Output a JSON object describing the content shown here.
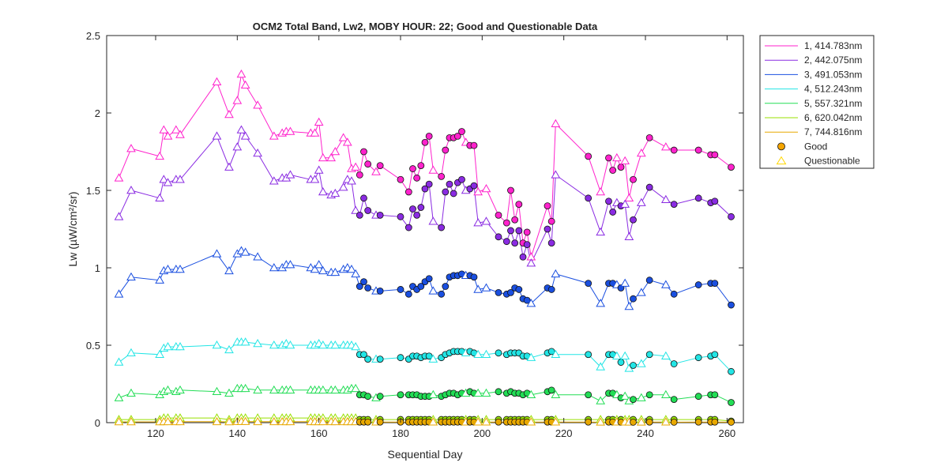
{
  "chart_data": {
    "type": "line",
    "title": "OCM2 Total Band,  Lw2, MOBY HOUR: 22;  Good and Questionable Data",
    "xlabel": "Sequential Day",
    "ylabel": "Lw (µW/cm²/sr)",
    "xlim": [
      108,
      264
    ],
    "ylim": [
      0,
      2.5
    ],
    "xticks": [
      120,
      140,
      160,
      180,
      200,
      220,
      240,
      260
    ],
    "yticks": [
      0,
      0.5,
      1,
      1.5,
      2,
      2.5
    ],
    "ytick_labels": [
      "0",
      "0.5",
      "1",
      "1.5",
      "2",
      "2.5"
    ],
    "grid": false,
    "legend_position": "outside-top-right",
    "x": [
      111,
      114,
      121,
      122,
      123,
      125,
      126,
      135,
      138,
      140,
      141,
      142,
      145,
      149,
      151,
      152,
      153,
      158,
      159,
      160,
      161,
      163,
      164,
      166,
      167,
      168,
      169,
      170,
      171,
      172,
      174,
      175,
      180,
      182,
      183,
      184,
      185,
      186,
      187,
      188,
      190,
      191,
      192,
      193,
      194,
      195,
      196,
      197,
      198,
      199,
      201,
      204,
      206,
      207,
      208,
      209,
      210,
      211,
      212,
      216,
      217,
      218,
      226,
      229,
      231,
      232,
      233,
      234,
      235,
      236,
      237,
      239,
      241,
      245,
      247,
      253,
      256,
      257,
      261
    ],
    "quality": [
      "Q",
      "Q",
      "Q",
      "Q",
      "Q",
      "Q",
      "Q",
      "Q",
      "Q",
      "Q",
      "Q",
      "Q",
      "Q",
      "Q",
      "Q",
      "Q",
      "Q",
      "Q",
      "Q",
      "Q",
      "Q",
      "Q",
      "Q",
      "Q",
      "Q",
      "Q",
      "Q",
      "G",
      "G",
      "G",
      "Q",
      "G",
      "G",
      "G",
      "G",
      "G",
      "G",
      "G",
      "G",
      "Q",
      "G",
      "G",
      "G",
      "G",
      "G",
      "G",
      "Q",
      "G",
      "G",
      "Q",
      "Q",
      "G",
      "G",
      "G",
      "G",
      "G",
      "G",
      "G",
      "Q",
      "G",
      "G",
      "Q",
      "G",
      "Q",
      "G",
      "G",
      "Q",
      "G",
      "Q",
      "Q",
      "G",
      "Q",
      "G",
      "Q",
      "G",
      "G",
      "G",
      "G",
      "G"
    ],
    "series": [
      {
        "name": "1, 414.783nm",
        "color": "#ff22cc",
        "values": [
          1.58,
          1.77,
          1.72,
          1.89,
          1.85,
          1.89,
          1.86,
          2.2,
          1.99,
          2.08,
          2.25,
          2.18,
          2.05,
          1.85,
          1.87,
          1.88,
          1.88,
          1.87,
          1.87,
          1.94,
          1.71,
          1.71,
          1.75,
          1.84,
          1.81,
          1.64,
          1.65,
          1.6,
          1.75,
          1.67,
          1.62,
          1.66,
          1.57,
          1.49,
          1.64,
          1.58,
          1.66,
          1.81,
          1.85,
          1.63,
          1.59,
          1.76,
          1.84,
          1.84,
          1.85,
          1.88,
          1.81,
          1.79,
          1.79,
          1.49,
          1.51,
          1.34,
          1.29,
          1.5,
          1.31,
          1.41,
          1.16,
          1.23,
          1.07,
          1.4,
          1.3,
          1.93,
          1.72,
          1.49,
          1.71,
          1.63,
          1.71,
          1.65,
          1.69,
          1.45,
          1.57,
          1.74,
          1.84,
          1.78,
          1.76,
          1.76,
          1.73,
          1.73,
          1.65
        ]
      },
      {
        "name": "2, 442.075nm",
        "color": "#8a2be2",
        "values": [
          1.33,
          1.5,
          1.45,
          1.57,
          1.55,
          1.57,
          1.57,
          1.85,
          1.65,
          1.78,
          1.89,
          1.85,
          1.74,
          1.56,
          1.58,
          1.58,
          1.6,
          1.57,
          1.57,
          1.63,
          1.49,
          1.47,
          1.48,
          1.52,
          1.57,
          1.56,
          1.37,
          1.34,
          1.45,
          1.37,
          1.34,
          1.34,
          1.33,
          1.26,
          1.38,
          1.34,
          1.39,
          1.51,
          1.54,
          1.3,
          1.26,
          1.49,
          1.54,
          1.48,
          1.55,
          1.57,
          1.5,
          1.51,
          1.53,
          1.29,
          1.3,
          1.2,
          1.17,
          1.24,
          1.16,
          1.24,
          1.07,
          1.15,
          1.03,
          1.25,
          1.16,
          1.6,
          1.45,
          1.23,
          1.43,
          1.36,
          1.42,
          1.4,
          1.41,
          1.2,
          1.31,
          1.42,
          1.52,
          1.44,
          1.41,
          1.45,
          1.42,
          1.43,
          1.33
        ]
      },
      {
        "name": "3, 491.053nm",
        "color": "#1a4fe0",
        "values": [
          0.83,
          0.94,
          0.92,
          0.98,
          0.99,
          0.99,
          0.99,
          1.09,
          0.98,
          1.09,
          1.11,
          1.1,
          1.07,
          1.0,
          1.0,
          1.02,
          1.02,
          1.0,
          0.99,
          1.02,
          0.98,
          0.97,
          0.97,
          0.99,
          1.0,
          0.99,
          0.96,
          0.88,
          0.91,
          0.87,
          0.85,
          0.85,
          0.86,
          0.83,
          0.88,
          0.86,
          0.88,
          0.91,
          0.93,
          0.85,
          0.83,
          0.88,
          0.94,
          0.95,
          0.95,
          0.96,
          0.95,
          0.95,
          0.94,
          0.86,
          0.87,
          0.84,
          0.83,
          0.84,
          0.87,
          0.86,
          0.8,
          0.79,
          0.77,
          0.87,
          0.86,
          0.96,
          0.9,
          0.77,
          0.9,
          0.9,
          0.89,
          0.87,
          0.9,
          0.75,
          0.8,
          0.84,
          0.92,
          0.89,
          0.83,
          0.89,
          0.9,
          0.9,
          0.76
        ]
      },
      {
        "name": "4, 512.243nm",
        "color": "#22e5e5",
        "values": [
          0.39,
          0.45,
          0.44,
          0.48,
          0.49,
          0.49,
          0.49,
          0.5,
          0.47,
          0.52,
          0.52,
          0.52,
          0.51,
          0.5,
          0.5,
          0.51,
          0.5,
          0.5,
          0.5,
          0.51,
          0.5,
          0.5,
          0.5,
          0.5,
          0.5,
          0.5,
          0.49,
          0.44,
          0.44,
          0.41,
          0.41,
          0.41,
          0.42,
          0.41,
          0.43,
          0.43,
          0.42,
          0.43,
          0.43,
          0.41,
          0.42,
          0.44,
          0.45,
          0.46,
          0.46,
          0.46,
          0.45,
          0.46,
          0.45,
          0.44,
          0.44,
          0.45,
          0.44,
          0.45,
          0.45,
          0.45,
          0.43,
          0.43,
          0.42,
          0.45,
          0.46,
          0.44,
          0.44,
          0.36,
          0.44,
          0.44,
          0.43,
          0.39,
          0.43,
          0.35,
          0.37,
          0.38,
          0.44,
          0.43,
          0.38,
          0.42,
          0.43,
          0.44,
          0.33
        ]
      },
      {
        "name": "5, 557.321nm",
        "color": "#22dd55",
        "values": [
          0.16,
          0.19,
          0.18,
          0.2,
          0.21,
          0.2,
          0.21,
          0.2,
          0.19,
          0.22,
          0.22,
          0.22,
          0.21,
          0.21,
          0.21,
          0.21,
          0.21,
          0.21,
          0.21,
          0.21,
          0.21,
          0.21,
          0.21,
          0.21,
          0.21,
          0.22,
          0.22,
          0.18,
          0.18,
          0.17,
          0.16,
          0.17,
          0.18,
          0.18,
          0.18,
          0.18,
          0.17,
          0.17,
          0.17,
          0.18,
          0.17,
          0.18,
          0.19,
          0.19,
          0.18,
          0.19,
          0.19,
          0.2,
          0.19,
          0.19,
          0.19,
          0.2,
          0.19,
          0.2,
          0.19,
          0.19,
          0.18,
          0.19,
          0.18,
          0.2,
          0.21,
          0.18,
          0.18,
          0.14,
          0.19,
          0.19,
          0.18,
          0.16,
          0.17,
          0.14,
          0.15,
          0.16,
          0.18,
          0.18,
          0.15,
          0.17,
          0.18,
          0.18,
          0.13
        ]
      },
      {
        "name": "6, 620.042nm",
        "color": "#99e000",
        "values": [
          0.02,
          0.02,
          0.02,
          0.03,
          0.03,
          0.03,
          0.03,
          0.03,
          0.02,
          0.03,
          0.03,
          0.03,
          0.03,
          0.03,
          0.03,
          0.03,
          0.03,
          0.03,
          0.03,
          0.03,
          0.03,
          0.03,
          0.03,
          0.03,
          0.03,
          0.03,
          0.03,
          0.02,
          0.02,
          0.02,
          0.02,
          0.02,
          0.02,
          0.02,
          0.02,
          0.02,
          0.02,
          0.02,
          0.02,
          0.02,
          0.02,
          0.02,
          0.02,
          0.02,
          0.02,
          0.02,
          0.02,
          0.02,
          0.02,
          0.02,
          0.02,
          0.02,
          0.02,
          0.02,
          0.02,
          0.02,
          0.02,
          0.02,
          0.02,
          0.02,
          0.02,
          0.02,
          0.02,
          0.02,
          0.02,
          0.02,
          0.02,
          0.02,
          0.02,
          0.02,
          0.02,
          0.02,
          0.02,
          0.02,
          0.02,
          0.02,
          0.02,
          0.02,
          0.01
        ]
      },
      {
        "name": "7, 744.816nm",
        "color": "#e8a800",
        "values": [
          0.005,
          0.005,
          0.005,
          0.006,
          0.006,
          0.006,
          0.006,
          0.006,
          0.005,
          0.007,
          0.007,
          0.007,
          0.006,
          0.006,
          0.006,
          0.006,
          0.006,
          0.006,
          0.006,
          0.006,
          0.006,
          0.006,
          0.006,
          0.006,
          0.006,
          0.006,
          0.006,
          0.004,
          0.004,
          0.004,
          0.004,
          0.004,
          0.004,
          0.004,
          0.004,
          0.004,
          0.004,
          0.004,
          0.004,
          0.004,
          0.004,
          0.004,
          0.004,
          0.004,
          0.004,
          0.004,
          0.004,
          0.004,
          0.004,
          0.004,
          0.004,
          0.004,
          0.004,
          0.004,
          0.004,
          0.004,
          0.004,
          0.004,
          0.004,
          0.004,
          0.004,
          0.004,
          0.004,
          0.003,
          0.004,
          0.004,
          0.004,
          0.003,
          0.004,
          0.003,
          0.003,
          0.003,
          0.004,
          0.004,
          0.003,
          0.004,
          0.004,
          0.004,
          0.003
        ]
      }
    ],
    "marker_legend": [
      {
        "name": "Good",
        "marker": "circle",
        "color": "#f5a500"
      },
      {
        "name": "Questionable",
        "marker": "triangle",
        "color": "#ffd700"
      }
    ]
  }
}
